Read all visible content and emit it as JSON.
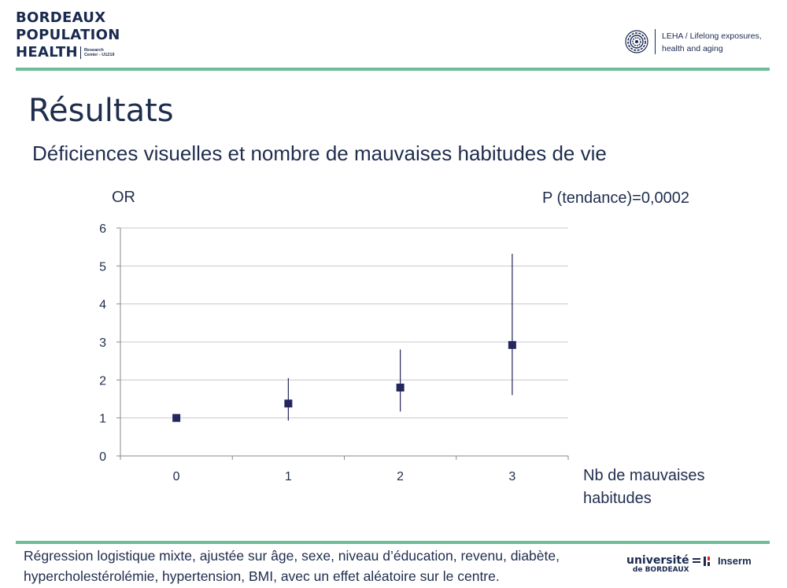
{
  "header": {
    "brand_lines": [
      "BORDEAUX",
      "POPULATION",
      "HEALTH"
    ],
    "brand_sub_lines": [
      "Research",
      "Center - U1219"
    ],
    "leha_lines": [
      "LEHA / Lifelong exposures,",
      "health and aging"
    ]
  },
  "slide": {
    "title": "Résultats",
    "subtitle": "Déficiences visuelles et nombre de mauvaises habitudes de vie"
  },
  "chart_data": {
    "type": "scatter",
    "ylabel": "OR",
    "xlabel_lines": [
      "Nb de mauvaises",
      "habitudes"
    ],
    "annotation": "P (tendance)=0,0002",
    "categories": [
      "0",
      "1",
      "2",
      "3"
    ],
    "ylim": [
      0,
      6
    ],
    "yticks": [
      "0",
      "1",
      "2",
      "3",
      "4",
      "5",
      "6"
    ],
    "grid": true,
    "points": [
      {
        "x": "0",
        "or": 1.0,
        "ci_low": 1.0,
        "ci_high": 1.0
      },
      {
        "x": "1",
        "or": 1.38,
        "ci_low": 0.93,
        "ci_high": 2.05
      },
      {
        "x": "2",
        "or": 1.8,
        "ci_low": 1.17,
        "ci_high": 2.8
      },
      {
        "x": "3",
        "or": 2.92,
        "ci_low": 1.6,
        "ci_high": 5.32
      }
    ],
    "marker_color": "#25265e"
  },
  "footer": {
    "lines": [
      "Régression logistique mixte, ajustée sur âge, sexe, niveau d’éducation, revenu, diabète,",
      "hypercholestérolémie, hypertension, BMI, avec un effet aléatoire sur le centre."
    ],
    "ub_logo_lines": [
      "université",
      "de BORDEAUX"
    ],
    "inserm_label": "Inserm"
  },
  "colors": {
    "accent_rule": "#6dbc9a",
    "text": "#1f2d4d"
  }
}
